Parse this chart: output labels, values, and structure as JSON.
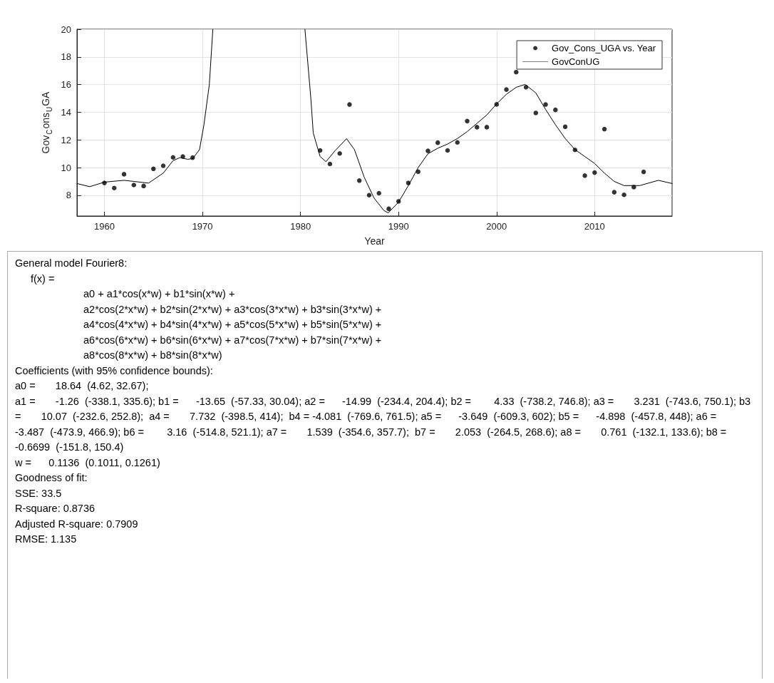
{
  "chart_data": {
    "type": "scatter",
    "xlabel": "Year",
    "ylabel": "Gov$_{C}$ons$_{U}$GA",
    "xlim": [
      1957.2,
      2017.9
    ],
    "ylim": [
      6.5,
      20
    ],
    "xticks": [
      1960,
      1970,
      1980,
      1990,
      2000,
      2010
    ],
    "yticks": [
      8,
      10,
      12,
      14,
      16,
      18,
      20
    ],
    "grid": true,
    "legend": "top right",
    "series": [
      {
        "name": "Gov_Cons_UGA vs. Year",
        "marker": "circle",
        "color": "#000000",
        "x": [
          1960,
          1961,
          1962,
          1963,
          1964,
          1965,
          1966,
          1967,
          1968,
          1969,
          1982,
          1983,
          1984,
          1985,
          1986,
          1987,
          1988,
          1989,
          1990,
          1991,
          1992,
          1993,
          1994,
          1995,
          1996,
          1997,
          1998,
          1999,
          2000,
          2001,
          2002,
          2003,
          2004,
          2005,
          2006,
          2007,
          2008,
          2009,
          2010,
          2011,
          2012,
          2013,
          2014,
          2015
        ],
        "values": [
          8.89,
          8.52,
          9.52,
          8.74,
          8.67,
          9.91,
          10.13,
          10.74,
          10.8,
          10.72,
          11.24,
          10.26,
          11.02,
          14.56,
          9.06,
          8.01,
          8.15,
          7.02,
          7.56,
          8.89,
          9.7,
          11.21,
          11.8,
          11.24,
          11.82,
          13.36,
          12.92,
          12.92,
          14.57,
          15.64,
          16.9,
          15.81,
          13.95,
          14.56,
          14.17,
          12.95,
          11.28,
          9.42,
          9.64,
          12.78,
          8.22,
          8.03,
          8.59,
          9.69
        ]
      },
      {
        "name": "GovConUG",
        "type": "line",
        "marker": "none",
        "line_style": "solid",
        "color": "#000000",
        "x": [
          1957.2,
          1958.5,
          1960,
          1962,
          1963,
          1964.5,
          1966,
          1967,
          1967.7,
          1968.5,
          1969,
          1969.7,
          1970.15,
          1970.7,
          1971.06,
          1975,
          1980.45,
          1981.06,
          1981.3,
          1982,
          1982.6,
          1983.5,
          1984.7,
          1985.5,
          1986.5,
          1987.5,
          1988.5,
          1988.95,
          1990,
          1991,
          1992,
          1993,
          1994,
          1995,
          1996,
          1997,
          1998,
          1999,
          2000,
          2001,
          2002,
          2002.9,
          2004,
          2005,
          2006,
          2007,
          2008,
          2009,
          2010,
          2011,
          2012,
          2013,
          2014.6,
          2016.5,
          2017.9
        ],
        "values": [
          8.85,
          8.62,
          8.95,
          9.08,
          9.0,
          8.88,
          9.6,
          10.5,
          10.72,
          10.6,
          10.65,
          11.3,
          13.1,
          16,
          20,
          null,
          20,
          14.96,
          12.5,
          10.8,
          10.43,
          11.2,
          12.09,
          11.3,
          9.3,
          7.8,
          6.9,
          6.73,
          7.5,
          8.7,
          10.0,
          11.0,
          11.4,
          11.7,
          12.1,
          12.6,
          13.2,
          13.8,
          14.6,
          15.3,
          15.8,
          16.01,
          15.4,
          14.2,
          13.1,
          12.1,
          11.3,
          10.8,
          10.3,
          9.6,
          9.0,
          8.7,
          8.7,
          9.08,
          8.85
        ]
      }
    ],
    "annotations": [
      "General model Fourier8:",
      "f(x) =",
      "a0 + a1*cos(x*w) + b1*sin(x*w) +",
      "a2*cos(2*x*w) + b2*sin(2*x*w) + a3*cos(3*x*w) + b3*sin(3*x*w) +",
      "a4*cos(4*x*w) + b4*sin(4*x*w) + a5*cos(5*x*w) + b5*sin(5*x*w) +",
      "a6*cos(6*x*w) + b6*sin(6*x*w) + a7*cos(7*x*w) + b7*sin(7*x*w) +",
      "a8*cos(8*x*w) + b8*sin(8*x*w)",
      "Coefficients (with 95% confidence bounds):",
      "a0 =       18.64  (4.62, 32.67);",
      "a1 =       -1.26  (-338.1, 335.6); b1 =      -13.65  (-57.33, 30.04); a2 =      -14.99  (-234.4, 204.4); b2 =        4.33  (-738.2, 746.8); a3 =       3.231  (-743.6, 750.1); b3 =       10.07  (-232.6, 252.8);  a4 =       7.732  (-398.5, 414);  b4 = -4.081  (-769.6, 761.5); a5 =      -3.649  (-609.3, 602); b5 =      -4.898  (-457.8, 448); a6 =      -3.487  (-473.9, 466.9); b6 =        3.16  (-514.8, 521.1); a7 =       1.539  (-354.6, 357.7);  b7 =       2.053  (-264.5, 268.6); a8 =       0.761  (-132.1, 133.6); b8 =     -0.6699  (-151.8, 150.4)",
      "w =      0.1136  (0.1011, 0.1261)",
      "Goodness of fit:",
      "SSE: 33.5",
      "R-square: 0.8736",
      "Adjusted R-square: 0.7909",
      "RMSE: 1.135"
    ]
  }
}
